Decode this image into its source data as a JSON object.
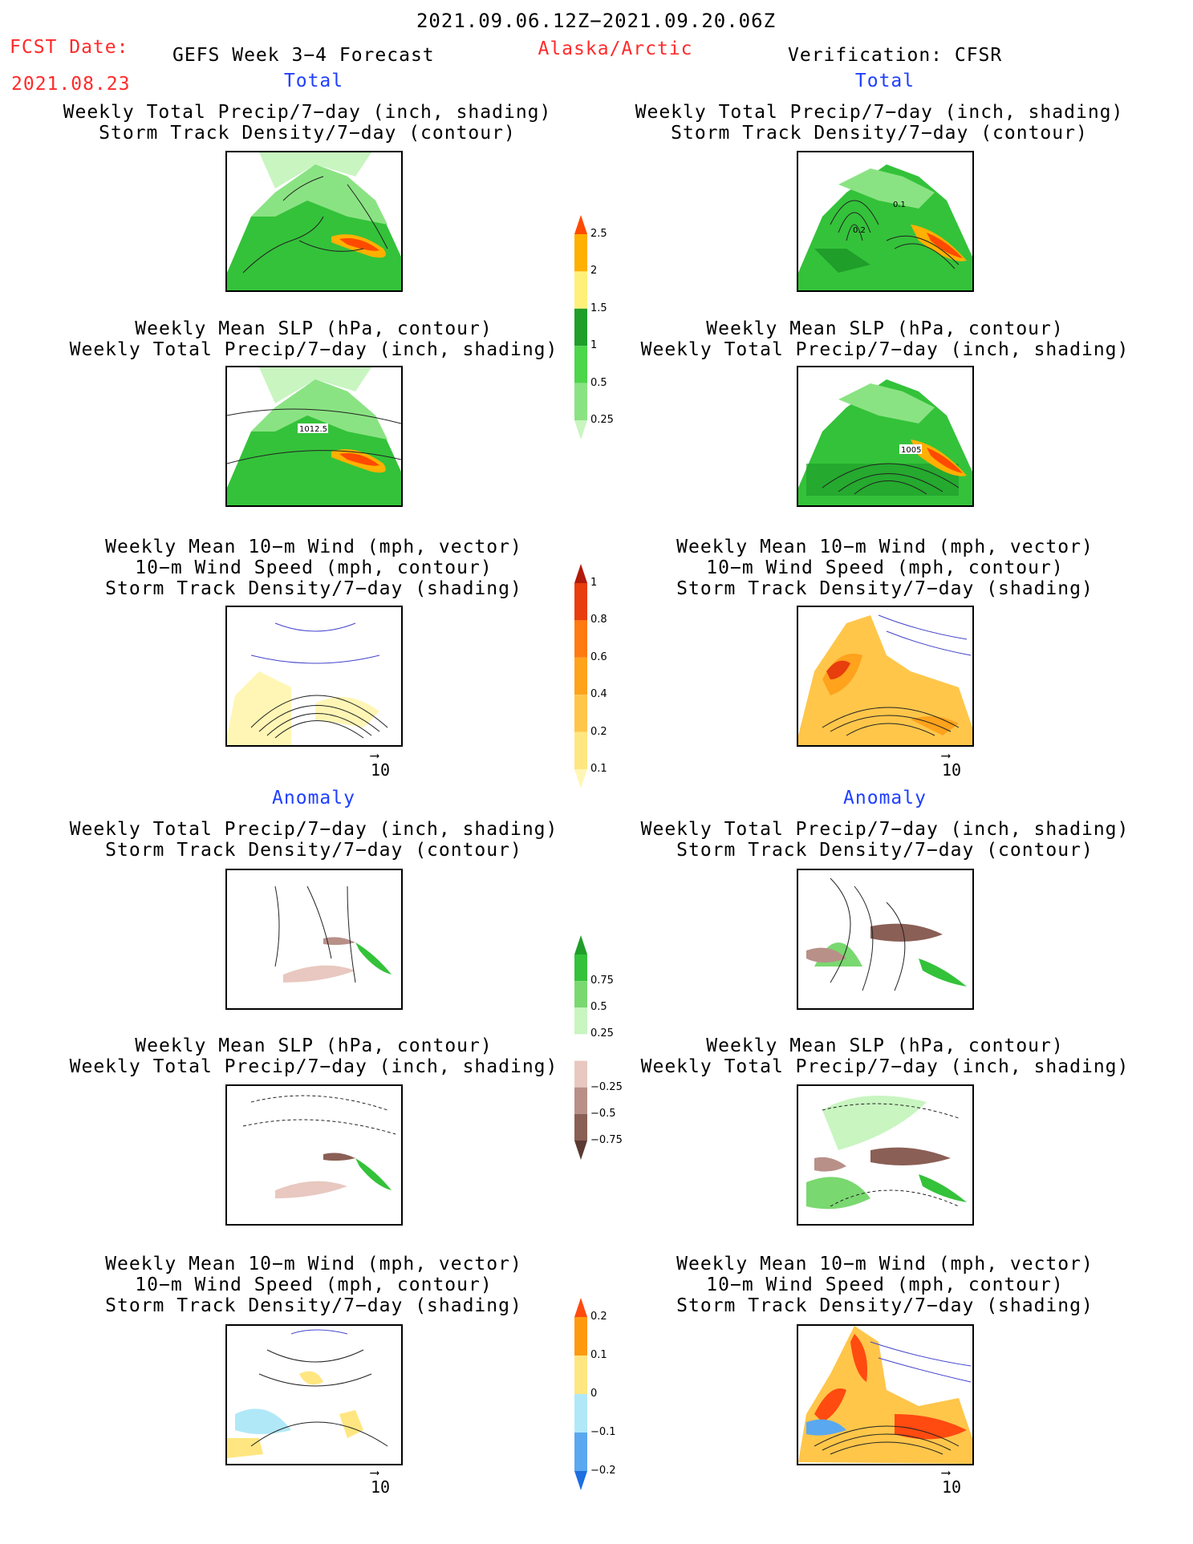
{
  "header": {
    "period": "2021.09.06.12Z−2021.09.20.06Z",
    "fcst_label": "FCST Date:",
    "fcst_date": "2021.08.23",
    "model": "GEFS Week 3−4 Forecast",
    "region": "Alaska/Arctic",
    "verification": "Verification: CFSR"
  },
  "sections": {
    "total_left": "Total",
    "total_right": "Total",
    "anomaly_left": "Anomaly",
    "anomaly_right": "Anomaly"
  },
  "titles": {
    "precip_std_l1": "Weekly Total Precip/7−day (inch, shading)",
    "precip_std_l2": "Storm Track Density/7−day (contour)",
    "slp_l1": "Weekly Mean SLP (hPa, contour)",
    "slp_l2": "Weekly Total Precip/7−day (inch, shading)",
    "wind_l1": "Weekly Mean 10−m Wind (mph, vector)",
    "wind_l2": "10−m Wind Speed (mph, contour)",
    "wind_l3": "Storm Track Density/7−day (shading)"
  },
  "contour_labels": {
    "fcst_slp_total": "1012.5",
    "verif_slp_total": "1005",
    "verif_std_a": "0.1",
    "verif_std_b": "0.2"
  },
  "vector_reference": "10",
  "chart_data": [
    {
      "type": "heatmap",
      "name": "Total precip colorbar",
      "ticks": [
        "0.25",
        "0.5",
        "1",
        "1.5",
        "2",
        "2.5"
      ],
      "colors": [
        "#c8f5c0",
        "#8ae383",
        "#4cd64a",
        "#1f9e2a",
        "#fff07a",
        "#ffb000",
        "#ff4a00"
      ]
    },
    {
      "type": "heatmap",
      "name": "Total storm track density colorbar",
      "ticks": [
        "0.1",
        "0.2",
        "0.4",
        "0.6",
        "0.8",
        "1"
      ],
      "colors": [
        "#fff6b5",
        "#ffe680",
        "#ffc64a",
        "#ffa21c",
        "#ff7a10",
        "#e83d0c",
        "#b01a0a"
      ]
    },
    {
      "type": "heatmap",
      "name": "Precip anomaly colorbar",
      "ticks": [
        "−0.75",
        "−0.5",
        "−0.25",
        "0.25",
        "0.5",
        "0.75"
      ],
      "colors": [
        "#5a3a32",
        "#8a5f55",
        "#b89088",
        "#e8c8c0",
        "#ffffff",
        "#c8f5c0",
        "#7ad870",
        "#34c23a",
        "#1f9e2a"
      ]
    },
    {
      "type": "heatmap",
      "name": "Storm track anomaly colorbar",
      "ticks": [
        "−0.2",
        "−0.1",
        "0",
        "0.1",
        "0.2"
      ],
      "colors": [
        "#1e6fe0",
        "#5aa8f0",
        "#b0e8f8",
        "#ffe680",
        "#ff9a10",
        "#ff4a10"
      ]
    }
  ]
}
